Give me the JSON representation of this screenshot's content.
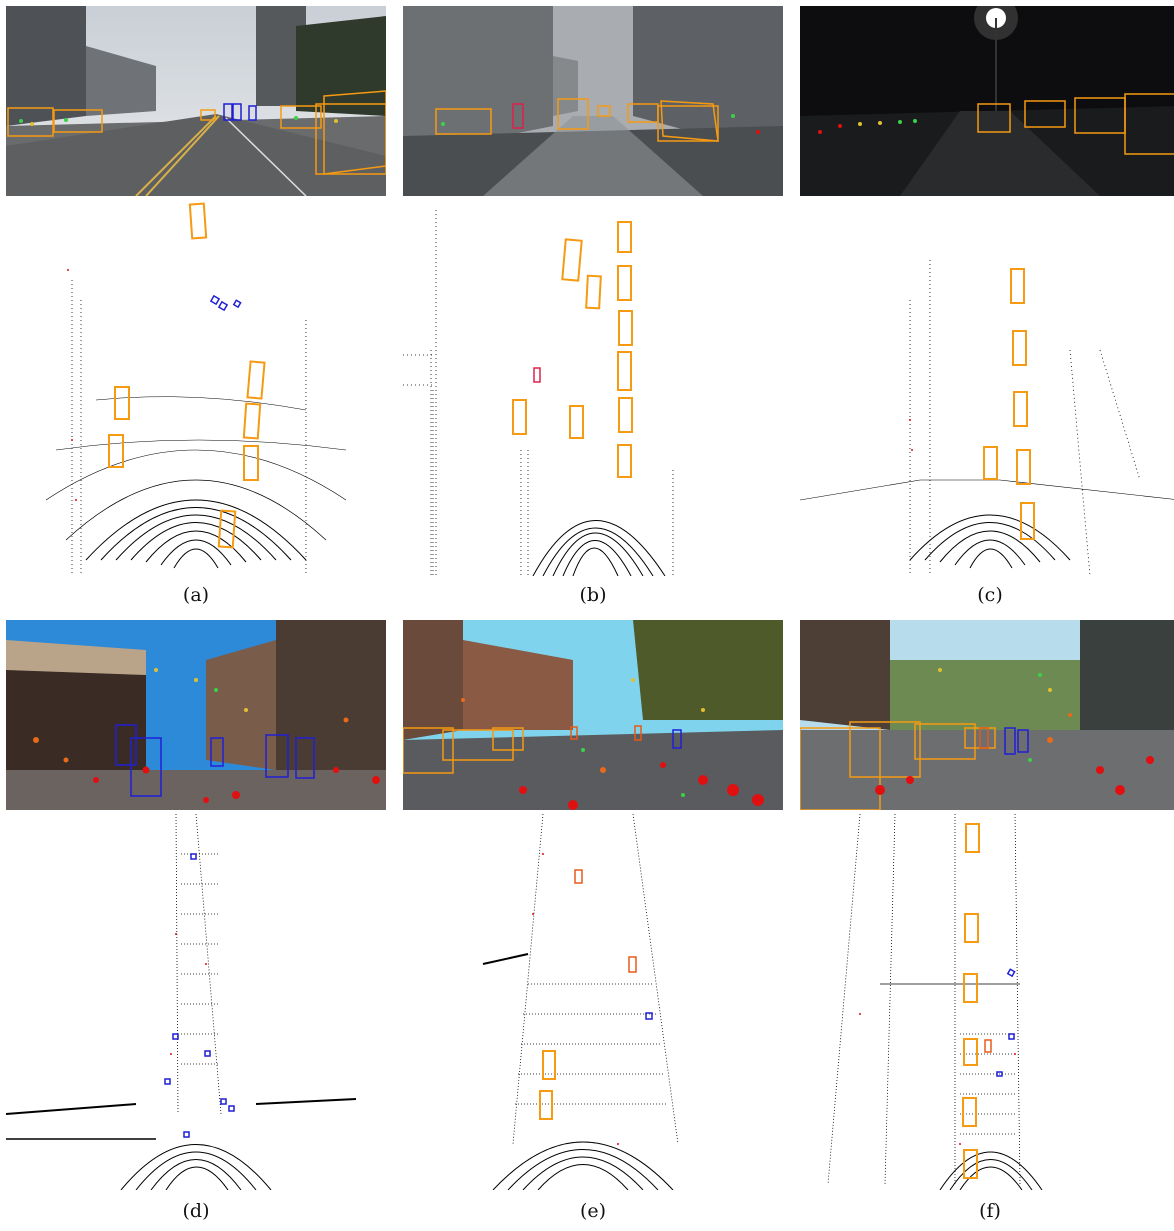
{
  "figure": {
    "panels": [
      {
        "id": "a",
        "caption": "(a)"
      },
      {
        "id": "b",
        "caption": "(b)"
      },
      {
        "id": "c",
        "caption": "(c)"
      },
      {
        "id": "d",
        "caption": "(d)"
      },
      {
        "id": "e",
        "caption": "(e)"
      },
      {
        "id": "f",
        "caption": "(f)"
      }
    ],
    "colors": {
      "car_box": "#f59a12",
      "pedestrian_box": "#1f1fd6",
      "cyclist_box": "#e0204a",
      "other_box": "#e85a1a",
      "lidar_points": "#000000",
      "radar_points": "#e01010"
    }
  }
}
